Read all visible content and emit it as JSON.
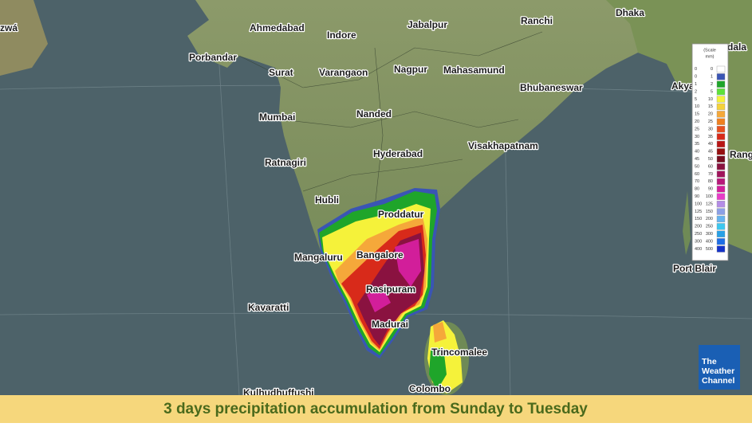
{
  "map": {
    "caption": "3 days precipitation accumulation from Sunday to Tuesday",
    "labels": [
      "zwá",
      "Ahmedabad",
      "Indore",
      "Jabalpur",
      "Ranchi",
      "Dhaka",
      "dala",
      "Porbandar",
      "Surat",
      "Varangaon",
      "Nagpur",
      "Mahasamund",
      "Bhubaneswar",
      "Akya",
      "Mumbai",
      "Nanded",
      "Hyderabad",
      "Visakhapatnam",
      "Rang",
      "Ratnagiri",
      "Hubli",
      "Proddatur",
      "Mangaluru",
      "Bangalore",
      "Port Blair",
      "Rasipuram",
      "Kavaratti",
      "Madurai",
      "Trincomalee",
      "Colombo",
      "Kulhudhuffushi"
    ],
    "legend": {
      "title": [
        "(Scale",
        "mm)"
      ],
      "rows": [
        {
          "from": 0,
          "to": 0,
          "color": "#ffffff"
        },
        {
          "from": 0,
          "to": 1,
          "color": "#3a55b4"
        },
        {
          "from": 1,
          "to": 2,
          "color": "#1fa52a"
        },
        {
          "from": 2,
          "to": 5,
          "color": "#5ee23a"
        },
        {
          "from": 5,
          "to": 10,
          "color": "#f5f23a"
        },
        {
          "from": 10,
          "to": 15,
          "color": "#f5d23a"
        },
        {
          "from": 15,
          "to": 20,
          "color": "#f5a83a"
        },
        {
          "from": 20,
          "to": 25,
          "color": "#f0801f"
        },
        {
          "from": 25,
          "to": 30,
          "color": "#e8501f"
        },
        {
          "from": 30,
          "to": 35,
          "color": "#d82a1a"
        },
        {
          "from": 35,
          "to": 40,
          "color": "#b81515"
        },
        {
          "from": 40,
          "to": 45,
          "color": "#961010"
        },
        {
          "from": 45,
          "to": 50,
          "color": "#780e20"
        },
        {
          "from": 50,
          "to": 60,
          "color": "#8a1240"
        },
        {
          "from": 60,
          "to": 70,
          "color": "#a0145c"
        },
        {
          "from": 70,
          "to": 80,
          "color": "#b8187a"
        },
        {
          "from": 80,
          "to": 90,
          "color": "#d21e9a"
        },
        {
          "from": 90,
          "to": 100,
          "color": "#e83cc8"
        },
        {
          "from": 100,
          "to": 125,
          "color": "#b48ce6"
        },
        {
          "from": 125,
          "to": 150,
          "color": "#8ca0e6"
        },
        {
          "from": 150,
          "to": 200,
          "color": "#64b4f0"
        },
        {
          "from": 200,
          "to": 250,
          "color": "#3cc8f0"
        },
        {
          "from": 250,
          "to": 300,
          "color": "#28a0e6"
        },
        {
          "from": 300,
          "to": 400,
          "color": "#1e6ee6"
        },
        {
          "from": 400,
          "to": 500,
          "color": "#1432c8"
        }
      ]
    },
    "logo": [
      "The",
      "Weather",
      "Channel"
    ]
  }
}
